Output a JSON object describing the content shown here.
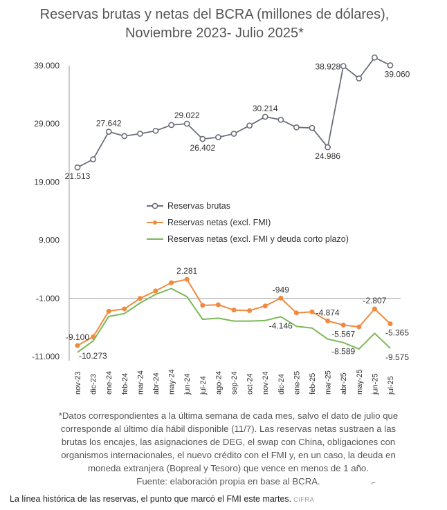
{
  "chart_data": {
    "type": "line",
    "title_lines": [
      "Reservas brutas y netas del BCRA (millones de dólares),",
      "Noviembre 2023- Julio 2025*"
    ],
    "categories": [
      "nov-23",
      "dic-23",
      "ene-24",
      "feb-24",
      "mar-24",
      "abr-24",
      "may-24",
      "jun-24",
      "jul-24",
      "ago-24",
      "sep-24",
      "oct-24",
      "nov-24",
      "dic-24",
      "ene-25",
      "feb-25",
      "mar-25",
      "abr-25",
      "may-25",
      "jun-25",
      "jul-25"
    ],
    "y_ticks": [
      39000,
      29000,
      19000,
      9000,
      -1000,
      -11000
    ],
    "y_tick_labels": [
      "39.000",
      "29.000",
      "19.000",
      "9.000",
      "-1.000",
      "-11.000"
    ],
    "ylim": [
      -11000,
      39000
    ],
    "legend_position": "inside, middle-left",
    "series": [
      {
        "name": "Reservas brutas",
        "color": "#6b6f7b",
        "marker": "hollow-circle",
        "values": [
          21513,
          22900,
          27642,
          26900,
          27300,
          27800,
          28800,
          29022,
          26402,
          26700,
          27300,
          28700,
          30214,
          29700,
          28400,
          28300,
          24986,
          38928,
          36800,
          40400,
          39060
        ],
        "labels": [
          {
            "index": 0,
            "text": "21.513",
            "pos": "below"
          },
          {
            "index": 2,
            "text": "27.642",
            "pos": "above"
          },
          {
            "index": 7,
            "text": "29.022",
            "pos": "above"
          },
          {
            "index": 8,
            "text": "26.402",
            "pos": "below"
          },
          {
            "index": 12,
            "text": "30.214",
            "pos": "above"
          },
          {
            "index": 16,
            "text": "24.986",
            "pos": "below"
          },
          {
            "index": 17,
            "text": "38.928",
            "pos": "left"
          },
          {
            "index": 20,
            "text": "39.060",
            "pos": "below"
          }
        ]
      },
      {
        "name": "Reservas netas (excl. FMI)",
        "color": "#ef8a3f",
        "marker": "filled-circle",
        "values": [
          -9100,
          -7600,
          -3200,
          -2800,
          -1000,
          300,
          1700,
          2281,
          -2200,
          -2100,
          -3000,
          -3100,
          -2300,
          -949,
          -3500,
          -3300,
          -4874,
          -5567,
          -5900,
          -2807,
          -5365
        ],
        "labels": [
          {
            "index": 0,
            "text": "-9.100",
            "pos": "above"
          },
          {
            "index": 7,
            "text": "2.281",
            "pos": "above"
          },
          {
            "index": 13,
            "text": "-949",
            "pos": "above"
          },
          {
            "index": 16,
            "text": "-4.874",
            "pos": "above"
          },
          {
            "index": 17,
            "text": "-5.567",
            "pos": "below"
          },
          {
            "index": 19,
            "text": "-2.807",
            "pos": "above"
          },
          {
            "index": 20,
            "text": "-5.365",
            "pos": "below"
          }
        ]
      },
      {
        "name": "Reservas netas (excl. FMI y deuda corto plazo)",
        "color": "#79b957",
        "marker": "none",
        "values": [
          -10273,
          -8300,
          -4100,
          -3600,
          -1800,
          -300,
          700,
          -700,
          -4600,
          -4400,
          -4900,
          -4900,
          -4800,
          -4146,
          -5800,
          -6100,
          -8000,
          -8589,
          -9700,
          -7000,
          -9575
        ],
        "labels": [
          {
            "index": 0,
            "text": "-10.273",
            "pos": "below"
          },
          {
            "index": 13,
            "text": "-4.146",
            "pos": "below"
          },
          {
            "index": 17,
            "text": "-8.589",
            "pos": "below"
          },
          {
            "index": 20,
            "text": "-9.575",
            "pos": "below"
          }
        ]
      }
    ]
  },
  "footnote_lines": [
    "*Datos correspondientes a la última semana de cada mes, salvo el dato de julio que",
    "corresponde al último día hábil disponible (11/7). Las reservas netas sustraen a las",
    "brutas los encajes, las asignaciones de DEG, el swap con China, obligaciones con",
    "organismos internacionales, el nuevo crédito con el FMI y, en un caso, la deuda en",
    "moneda extranjera (Bopreal y Tesoro) que vence en menos de 1 año.",
    "Fuente: elaboración propia en base al BCRA."
  ],
  "caption": {
    "text": "La línea histórica de las reservas, el punto que marcó el FMI este martes.",
    "source": "CIFRA"
  },
  "corner_mark": "⌐"
}
